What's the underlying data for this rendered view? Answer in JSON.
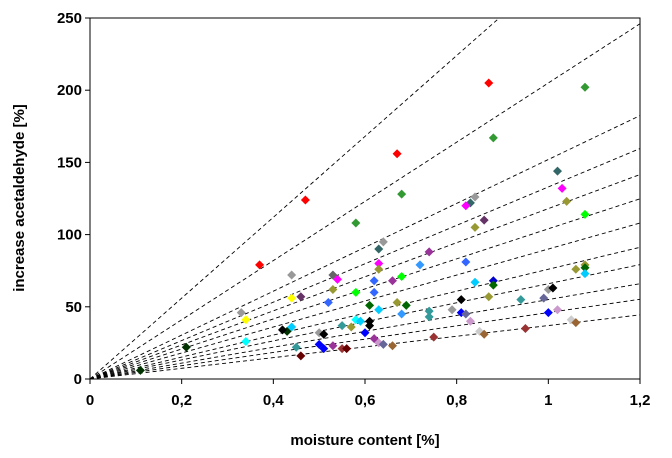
{
  "chart_data": {
    "type": "scatter",
    "title": "",
    "xlabel": "moisture content [%]",
    "ylabel": "increase acetaldehyde [%]",
    "xlim": [
      0,
      1.2
    ],
    "ylim": [
      0,
      250
    ],
    "x_ticks": [
      "0",
      "0,2",
      "0,4",
      "0,6",
      "0,8",
      "1",
      "1,2"
    ],
    "y_ticks": [
      "0",
      "50",
      "100",
      "150",
      "200",
      "250"
    ],
    "grid": false,
    "legend": "none",
    "marker": "diamond",
    "trend_line_slopes": [
      280,
      205,
      152,
      133,
      118,
      104,
      90,
      76,
      66,
      55,
      46,
      37
    ],
    "points": [
      {
        "x": 0.37,
        "y": 79,
        "color": "#ff0000"
      },
      {
        "x": 0.47,
        "y": 124,
        "color": "#ff0000"
      },
      {
        "x": 0.67,
        "y": 156,
        "color": "#ff0000"
      },
      {
        "x": 0.87,
        "y": 205,
        "color": "#ff0000"
      },
      {
        "x": 0.58,
        "y": 108,
        "color": "#339933"
      },
      {
        "x": 0.68,
        "y": 128,
        "color": "#339933"
      },
      {
        "x": 0.88,
        "y": 167,
        "color": "#339933"
      },
      {
        "x": 1.08,
        "y": 202,
        "color": "#339933"
      },
      {
        "x": 0.11,
        "y": 6,
        "color": "#003300"
      },
      {
        "x": 0.21,
        "y": 22,
        "color": "#003300"
      },
      {
        "x": 0.43,
        "y": 33,
        "color": "#003300"
      },
      {
        "x": 0.63,
        "y": 90,
        "color": "#336666"
      },
      {
        "x": 0.83,
        "y": 122,
        "color": "#336666"
      },
      {
        "x": 1.02,
        "y": 144,
        "color": "#336666"
      },
      {
        "x": 0.44,
        "y": 72,
        "color": "#999999"
      },
      {
        "x": 0.64,
        "y": 95,
        "color": "#999999"
      },
      {
        "x": 0.84,
        "y": 126,
        "color": "#999999"
      },
      {
        "x": 0.33,
        "y": 46,
        "color": "#999999"
      },
      {
        "x": 0.53,
        "y": 72,
        "color": "#666666"
      },
      {
        "x": 0.63,
        "y": 80,
        "color": "#ff00ff"
      },
      {
        "x": 0.82,
        "y": 120,
        "color": "#ff00ff"
      },
      {
        "x": 1.03,
        "y": 132,
        "color": "#ff00ff"
      },
      {
        "x": 0.86,
        "y": 110,
        "color": "#663366"
      },
      {
        "x": 0.46,
        "y": 57,
        "color": "#663366"
      },
      {
        "x": 0.74,
        "y": 88,
        "color": "#993399"
      },
      {
        "x": 0.54,
        "y": 69,
        "color": "#ff00ff"
      },
      {
        "x": 0.84,
        "y": 105,
        "color": "#999933"
      },
      {
        "x": 1.04,
        "y": 123,
        "color": "#999933"
      },
      {
        "x": 0.53,
        "y": 62,
        "color": "#999933"
      },
      {
        "x": 0.63,
        "y": 76,
        "color": "#999933"
      },
      {
        "x": 1.08,
        "y": 114,
        "color": "#00ff00"
      },
      {
        "x": 0.68,
        "y": 71,
        "color": "#00ff00"
      },
      {
        "x": 0.58,
        "y": 60,
        "color": "#00ff00"
      },
      {
        "x": 0.34,
        "y": 41,
        "color": "#ffff00"
      },
      {
        "x": 0.44,
        "y": 56,
        "color": "#ffff00"
      },
      {
        "x": 0.72,
        "y": 79,
        "color": "#3399ff"
      },
      {
        "x": 0.82,
        "y": 81,
        "color": "#3366ff"
      },
      {
        "x": 0.62,
        "y": 60,
        "color": "#3366ff"
      },
      {
        "x": 0.52,
        "y": 53,
        "color": "#3366ff"
      },
      {
        "x": 0.62,
        "y": 68,
        "color": "#3366ff"
      },
      {
        "x": 0.66,
        "y": 68,
        "color": "#993399"
      },
      {
        "x": 0.61,
        "y": 51,
        "color": "#006600"
      },
      {
        "x": 0.67,
        "y": 53,
        "color": "#999933"
      },
      {
        "x": 0.69,
        "y": 51,
        "color": "#006600"
      },
      {
        "x": 0.84,
        "y": 67,
        "color": "#00ccff"
      },
      {
        "x": 0.87,
        "y": 57,
        "color": "#999933"
      },
      {
        "x": 0.88,
        "y": 68,
        "color": "#0000cc"
      },
      {
        "x": 0.88,
        "y": 65,
        "color": "#006600"
      },
      {
        "x": 0.94,
        "y": 55,
        "color": "#339999"
      },
      {
        "x": 0.99,
        "y": 56,
        "color": "#666699"
      },
      {
        "x": 1.0,
        "y": 62,
        "color": "#999999"
      },
      {
        "x": 1.01,
        "y": 63,
        "color": "#000000"
      },
      {
        "x": 1.06,
        "y": 76,
        "color": "#999933"
      },
      {
        "x": 1.08,
        "y": 79,
        "color": "#999933"
      },
      {
        "x": 1.08,
        "y": 77,
        "color": "#006600"
      },
      {
        "x": 1.08,
        "y": 73,
        "color": "#00ccff"
      },
      {
        "x": 0.34,
        "y": 26,
        "color": "#00ffff"
      },
      {
        "x": 0.42,
        "y": 34,
        "color": "#000000"
      },
      {
        "x": 0.44,
        "y": 36,
        "color": "#00ccff"
      },
      {
        "x": 0.45,
        "y": 22,
        "color": "#339999"
      },
      {
        "x": 0.46,
        "y": 16,
        "color": "#660000"
      },
      {
        "x": 0.5,
        "y": 32,
        "color": "#999999"
      },
      {
        "x": 0.5,
        "y": 24,
        "color": "#0000ff"
      },
      {
        "x": 0.51,
        "y": 21,
        "color": "#0000ff"
      },
      {
        "x": 0.51,
        "y": 31,
        "color": "#000000"
      },
      {
        "x": 0.53,
        "y": 23,
        "color": "#993399"
      },
      {
        "x": 0.55,
        "y": 37,
        "color": "#339999"
      },
      {
        "x": 0.55,
        "y": 21,
        "color": "#993333"
      },
      {
        "x": 0.56,
        "y": 21,
        "color": "#660000"
      },
      {
        "x": 0.57,
        "y": 36,
        "color": "#999933"
      },
      {
        "x": 0.58,
        "y": 41,
        "color": "#00ffff"
      },
      {
        "x": 0.59,
        "y": 40,
        "color": "#00ccff"
      },
      {
        "x": 0.6,
        "y": 32,
        "color": "#0000ff"
      },
      {
        "x": 0.61,
        "y": 37,
        "color": "#000000"
      },
      {
        "x": 0.61,
        "y": 40,
        "color": "#000000"
      },
      {
        "x": 0.62,
        "y": 28,
        "color": "#993399"
      },
      {
        "x": 0.63,
        "y": 48,
        "color": "#00ccff"
      },
      {
        "x": 0.63,
        "y": 25,
        "color": "#cc99cc"
      },
      {
        "x": 0.64,
        "y": 24,
        "color": "#666699"
      },
      {
        "x": 0.66,
        "y": 23,
        "color": "#996633"
      },
      {
        "x": 0.68,
        "y": 45,
        "color": "#3399ff"
      },
      {
        "x": 0.74,
        "y": 47,
        "color": "#339999"
      },
      {
        "x": 0.74,
        "y": 43,
        "color": "#339999"
      },
      {
        "x": 0.75,
        "y": 29,
        "color": "#993333"
      },
      {
        "x": 0.79,
        "y": 48,
        "color": "#999999"
      },
      {
        "x": 0.81,
        "y": 55,
        "color": "#000000"
      },
      {
        "x": 0.81,
        "y": 46,
        "color": "#0000ff"
      },
      {
        "x": 0.82,
        "y": 45,
        "color": "#666699"
      },
      {
        "x": 0.83,
        "y": 40,
        "color": "#cc99cc"
      },
      {
        "x": 0.85,
        "y": 33,
        "color": "#cccccc"
      },
      {
        "x": 0.86,
        "y": 31,
        "color": "#996633"
      },
      {
        "x": 0.95,
        "y": 35,
        "color": "#993333"
      },
      {
        "x": 1.0,
        "y": 46,
        "color": "#0000ff"
      },
      {
        "x": 1.02,
        "y": 48,
        "color": "#cc99cc"
      },
      {
        "x": 1.05,
        "y": 41,
        "color": "#cccccc"
      },
      {
        "x": 1.06,
        "y": 39,
        "color": "#996633"
      }
    ]
  }
}
